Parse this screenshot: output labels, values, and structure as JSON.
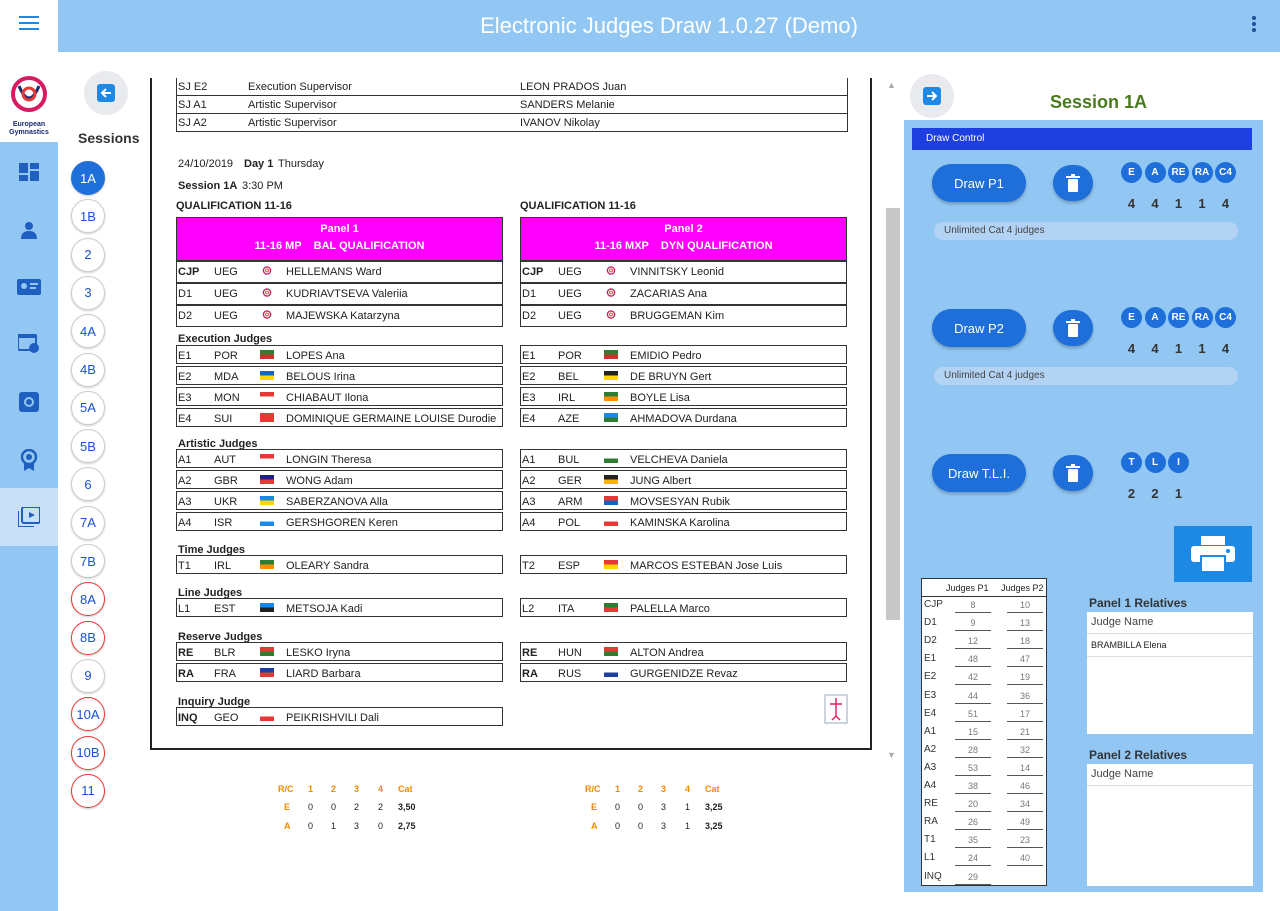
{
  "app_title": "Electronic Judges Draw 1.0.27 (Demo)",
  "logo_text": [
    "European",
    "Gymnastics"
  ],
  "sessions_title": "Sessions",
  "sessions": [
    {
      "label": "1A",
      "state": "active"
    },
    {
      "label": "1B",
      "state": "normal"
    },
    {
      "label": "2",
      "state": "normal"
    },
    {
      "label": "3",
      "state": "normal"
    },
    {
      "label": "4A",
      "state": "normal"
    },
    {
      "label": "4B",
      "state": "normal"
    },
    {
      "label": "5A",
      "state": "normal"
    },
    {
      "label": "5B",
      "state": "normal"
    },
    {
      "label": "6",
      "state": "normal"
    },
    {
      "label": "7A",
      "state": "normal"
    },
    {
      "label": "7B",
      "state": "normal"
    },
    {
      "label": "8A",
      "state": "red"
    },
    {
      "label": "8B",
      "state": "red"
    },
    {
      "label": "9",
      "state": "normal"
    },
    {
      "label": "10A",
      "state": "red"
    },
    {
      "label": "10B",
      "state": "red"
    },
    {
      "label": "11",
      "state": "red"
    }
  ],
  "supervisors": [
    {
      "code": "SJ E2",
      "role": "Execution Supervisor",
      "name": "LEON PRADOS Juan"
    },
    {
      "code": "SJ A1",
      "role": "Artistic Supervisor",
      "name": "SANDERS Melanie"
    },
    {
      "code": "SJ A2",
      "role": "Artistic Supervisor",
      "name": "IVANOV Nikolay"
    }
  ],
  "date_line": {
    "date": "24/10/2019",
    "day": "Day 1",
    "weekday": "Thursday"
  },
  "session_line": {
    "label": "Session 1A",
    "time": "3:30 PM"
  },
  "qual_title": "QUALIFICATION 11-16",
  "panels": [
    {
      "title": "Panel 1",
      "subtitle": "11-16 MP    BAL QUALIFICATION",
      "head": [
        {
          "code": "CJP",
          "nat": "UEG",
          "name": "HELLEMANS Ward"
        },
        {
          "code": "D1",
          "nat": "UEG",
          "name": "KUDRIAVTSEVA Valeriia"
        },
        {
          "code": "D2",
          "nat": "UEG",
          "name": "MAJEWSKA Katarzyna"
        }
      ],
      "exec": [
        {
          "code": "E1",
          "nat": "POR",
          "name": "LOPES Ana"
        },
        {
          "code": "E2",
          "nat": "MDA",
          "name": "BELOUS Irina"
        },
        {
          "code": "E3",
          "nat": "MON",
          "name": "CHIABAUT Ilona"
        },
        {
          "code": "E4",
          "nat": "SUI",
          "name": "DOMINIQUE GERMAINE LOUISE Durodie"
        }
      ],
      "art": [
        {
          "code": "A1",
          "nat": "AUT",
          "name": "LONGIN Theresa"
        },
        {
          "code": "A2",
          "nat": "GBR",
          "name": "WONG Adam"
        },
        {
          "code": "A3",
          "nat": "UKR",
          "name": "SABERZANOVA Alla"
        },
        {
          "code": "A4",
          "nat": "ISR",
          "name": "GERSHGOREN Keren"
        }
      ],
      "time": [
        {
          "code": "T1",
          "nat": "IRL",
          "name": "OLEARY Sandra"
        }
      ],
      "line": [
        {
          "code": "L1",
          "nat": "EST",
          "name": "METSOJA Kadi"
        }
      ],
      "reserve": [
        {
          "code": "RE",
          "nat": "BLR",
          "name": "LESKO Iryna"
        },
        {
          "code": "RA",
          "nat": "FRA",
          "name": "LIARD Barbara"
        }
      ],
      "inquiry": [
        {
          "code": "INQ",
          "nat": "GEO",
          "name": "PEIKRISHVILI Dali"
        }
      ]
    },
    {
      "title": "Panel 2",
      "subtitle": "11-16 MXP    DYN QUALIFICATION",
      "head": [
        {
          "code": "CJP",
          "nat": "UEG",
          "name": "VINNITSKY Leonid"
        },
        {
          "code": "D1",
          "nat": "UEG",
          "name": "ZACARIAS Ana"
        },
        {
          "code": "D2",
          "nat": "UEG",
          "name": "BRUGGEMAN Kim"
        }
      ],
      "exec": [
        {
          "code": "E1",
          "nat": "POR",
          "name": "EMIDIO Pedro"
        },
        {
          "code": "E2",
          "nat": "BEL",
          "name": "DE BRUYN Gert"
        },
        {
          "code": "E3",
          "nat": "IRL",
          "name": "BOYLE Lisa"
        },
        {
          "code": "E4",
          "nat": "AZE",
          "name": "AHMADOVA Durdana"
        }
      ],
      "art": [
        {
          "code": "A1",
          "nat": "BUL",
          "name": "VELCHEVA Daniela"
        },
        {
          "code": "A2",
          "nat": "GER",
          "name": "JUNG Albert"
        },
        {
          "code": "A3",
          "nat": "ARM",
          "name": "MOVSESYAN Rubik"
        },
        {
          "code": "A4",
          "nat": "POL",
          "name": "KAMINSKA Karolina"
        }
      ],
      "time": [
        {
          "code": "T2",
          "nat": "ESP",
          "name": "MARCOS ESTEBAN Jose Luis"
        }
      ],
      "line": [
        {
          "code": "L2",
          "nat": "ITA",
          "name": "PALELLA Marco"
        }
      ],
      "reserve": [
        {
          "code": "RE",
          "nat": "HUN",
          "name": "ALTON Andrea"
        },
        {
          "code": "RA",
          "nat": "RUS",
          "name": "GURGENIDZE Revaz"
        }
      ],
      "inquiry": []
    }
  ],
  "section_labels": {
    "exec": "Execution Judges",
    "art": "Artistic Judges",
    "time": "Time Judges",
    "line": "Line Judges",
    "reserve": "Reserve Judges",
    "inquiry": "Inquiry Judge"
  },
  "summary": [
    {
      "header": [
        "R/C",
        "1",
        "2",
        "3",
        "4",
        "Cat"
      ],
      "rows": [
        [
          "E",
          "0",
          "0",
          "2",
          "2",
          "3,50"
        ],
        [
          "A",
          "0",
          "1",
          "3",
          "0",
          "2,75"
        ]
      ]
    },
    {
      "header": [
        "R/C",
        "1",
        "2",
        "3",
        "4",
        "Cat"
      ],
      "rows": [
        [
          "E",
          "0",
          "0",
          "3",
          "1",
          "3,25"
        ],
        [
          "A",
          "0",
          "0",
          "3",
          "1",
          "3,25"
        ]
      ]
    }
  ],
  "right_session_title": "Session 1A",
  "draw_control_title": "Draw Control",
  "draws": [
    {
      "label": "Draw P1",
      "chips": [
        "E",
        "A",
        "RE",
        "RA",
        "C4"
      ],
      "counts": [
        "4",
        "4",
        "1",
        "1",
        "4"
      ],
      "note": "Unlimited Cat 4 judges"
    },
    {
      "label": "Draw P2",
      "chips": [
        "E",
        "A",
        "RE",
        "RA",
        "C4"
      ],
      "counts": [
        "4",
        "4",
        "1",
        "1",
        "4"
      ],
      "note": "Unlimited Cat 4 judges"
    },
    {
      "label": "Draw T.L.I.",
      "chips": [
        "T",
        "L",
        "I"
      ],
      "counts": [
        "2",
        "2",
        "1"
      ],
      "note": ""
    }
  ],
  "judges_table": {
    "headers": [
      "Judges P1",
      "Judges P2"
    ],
    "rows": [
      [
        "CJP",
        "8",
        "10"
      ],
      [
        "D1",
        "9",
        "13"
      ],
      [
        "D2",
        "12",
        "18"
      ],
      [
        "E1",
        "48",
        "47"
      ],
      [
        "E2",
        "42",
        "19"
      ],
      [
        "E3",
        "44",
        "36"
      ],
      [
        "E4",
        "51",
        "17"
      ],
      [
        "A1",
        "15",
        "21"
      ],
      [
        "A2",
        "28",
        "32"
      ],
      [
        "A3",
        "53",
        "14"
      ],
      [
        "A4",
        "38",
        "46"
      ],
      [
        "RE",
        "20",
        "34"
      ],
      [
        "RA",
        "26",
        "49"
      ],
      [
        "T1",
        "35",
        "23"
      ],
      [
        "L1",
        "24",
        "40"
      ],
      [
        "INQ",
        "29",
        ""
      ]
    ]
  },
  "relatives": [
    {
      "title": "Panel 1 Relatives",
      "header": "Judge Name",
      "items": [
        "BRAMBILLA Elena"
      ]
    },
    {
      "title": "Panel 2 Relatives",
      "header": "Judge Name",
      "items": []
    }
  ],
  "colors": {
    "accent": "#1e6fd9",
    "panel_header": "#ff00ff",
    "rail": "#92c7f4",
    "draw_header": "#1e3fe0"
  }
}
